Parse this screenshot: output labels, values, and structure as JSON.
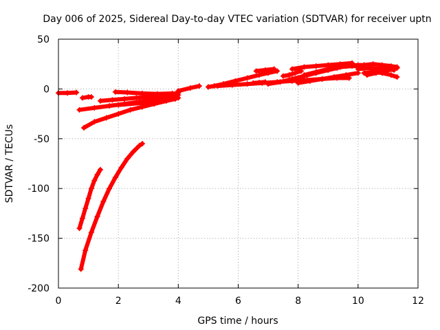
{
  "chart_data": {
    "type": "scatter",
    "title": "Day 006 of 2025, Sidereal Day-to-day VTEC variation (SDTVAR) for receiver uptn",
    "xlabel": "GPS time / hours",
    "ylabel": "SDTVAR / TECUs",
    "xlim": [
      0,
      12
    ],
    "ylim": [
      -200,
      50
    ],
    "xticks": [
      0,
      2,
      4,
      6,
      8,
      10,
      12
    ],
    "yticks": [
      -200,
      -150,
      -100,
      -50,
      0,
      50
    ],
    "xtick_labels": [
      "0",
      "2",
      "4",
      "6",
      "8",
      "10",
      "12"
    ],
    "ytick_labels": [
      "-200",
      "-150",
      "-100",
      "-50",
      "0",
      "50"
    ],
    "grid": true,
    "marker": "+",
    "color": "#ff0000",
    "series": [
      {
        "x": [
          0.0,
          0.3,
          0.6
        ],
        "y": [
          -4,
          -4,
          -3.5
        ]
      },
      {
        "x": [
          0.7,
          0.8,
          0.9,
          1.0,
          1.1,
          1.2,
          1.3,
          1.4
        ],
        "y": [
          -140,
          -130,
          -120,
          -110,
          -100,
          -92,
          -86,
          -81
        ]
      },
      {
        "x": [
          0.75,
          0.9,
          1.1,
          1.3,
          1.5,
          1.7,
          1.9,
          2.1,
          2.3,
          2.5,
          2.7,
          2.8
        ],
        "y": [
          -181,
          -162,
          -144,
          -128,
          -113,
          -100,
          -89,
          -79,
          -70,
          -63,
          -57,
          -55
        ]
      },
      {
        "x": [
          0.85,
          1.2,
          1.6,
          2.0,
          2.4,
          2.8,
          3.2,
          3.6,
          3.9
        ],
        "y": [
          -39,
          -33,
          -29,
          -25,
          -21,
          -18,
          -15,
          -12,
          -10
        ]
      },
      {
        "x": [
          0.7,
          1.2,
          1.7,
          2.2,
          2.7,
          3.2,
          3.7,
          4.0
        ],
        "y": [
          -21,
          -19,
          -17,
          -15,
          -13,
          -11,
          -8,
          -6
        ]
      },
      {
        "x": [
          0.8,
          1.0,
          1.1
        ],
        "y": [
          -9,
          -8,
          -8
        ]
      },
      {
        "x": [
          1.4,
          1.8,
          2.2,
          2.6,
          3.0,
          3.4,
          3.8,
          4.0
        ],
        "y": [
          -12,
          -11,
          -10,
          -9,
          -8,
          -7,
          -5,
          -4
        ]
      },
      {
        "x": [
          1.9,
          2.3,
          2.8,
          3.3,
          3.8
        ],
        "y": [
          -3,
          -3.5,
          -4.5,
          -5,
          -4.5
        ]
      },
      {
        "x": [
          2.0,
          2.8,
          3.5,
          4.0
        ],
        "y": [
          -16,
          -14,
          -12,
          -9
        ]
      },
      {
        "x": [
          4.0,
          4.4,
          4.7
        ],
        "y": [
          -2,
          1,
          3
        ]
      },
      {
        "x": [
          5.0,
          5.2,
          5.5,
          5.9,
          6.3,
          6.7,
          7.0,
          7.3
        ],
        "y": [
          2,
          3,
          5,
          8,
          11,
          14,
          16,
          18
        ]
      },
      {
        "x": [
          6.5,
          6.7,
          6.9
        ],
        "y": [
          6,
          6.5,
          7
        ]
      },
      {
        "x": [
          5.3,
          5.8,
          6.3,
          6.8,
          7.3,
          7.8,
          8.3,
          8.8,
          9.3,
          9.7
        ],
        "y": [
          3,
          4,
          5,
          6,
          7,
          8,
          9,
          10,
          11,
          11
        ]
      },
      {
        "x": [
          7.0,
          7.4,
          7.8,
          8.2,
          8.6,
          9.0,
          9.4,
          9.8
        ],
        "y": [
          5,
          7,
          10,
          13,
          16,
          19,
          22,
          25
        ]
      },
      {
        "x": [
          6.6,
          6.9,
          7.2
        ],
        "y": [
          18,
          19,
          20
        ]
      },
      {
        "x": [
          7.5,
          7.7,
          7.9,
          8.1
        ],
        "y": [
          13,
          14,
          16,
          18
        ]
      },
      {
        "x": [
          7.8,
          8.2,
          8.6,
          9.0,
          9.4,
          9.8
        ],
        "y": [
          20,
          22,
          23,
          24,
          25,
          26
        ]
      },
      {
        "x": [
          8.0,
          8.4,
          8.8,
          9.2,
          9.6,
          10.0
        ],
        "y": [
          6,
          8,
          10,
          12,
          14,
          16
        ]
      },
      {
        "x": [
          8.2,
          8.6,
          9.0,
          9.4,
          9.8,
          10.3
        ],
        "y": [
          14,
          17,
          20,
          22,
          23,
          23
        ]
      },
      {
        "x": [
          9.0,
          9.3,
          9.6,
          10.0,
          10.2
        ],
        "y": [
          19,
          21,
          23,
          24,
          24
        ]
      },
      {
        "x": [
          10.2,
          10.5,
          10.8,
          11.1,
          11.3
        ],
        "y": [
          24,
          25,
          24,
          23,
          22
        ]
      },
      {
        "x": [
          10.3,
          10.6,
          10.9,
          11.2,
          11.3
        ],
        "y": [
          14,
          16,
          18,
          20,
          21
        ]
      },
      {
        "x": [
          10.2,
          10.5,
          10.8,
          11.1,
          11.3
        ],
        "y": [
          16,
          17,
          16,
          14,
          12
        ]
      },
      {
        "x": [
          10.0,
          10.4,
          10.8,
          11.2
        ],
        "y": [
          20,
          21,
          20,
          19
        ]
      }
    ]
  }
}
